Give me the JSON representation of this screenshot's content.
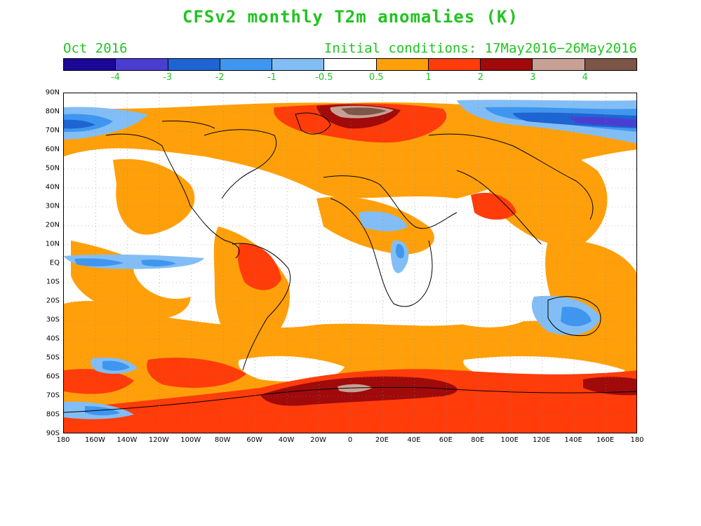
{
  "title": "CFSv2 monthly T2m anomalies (K)",
  "valid_month": "Oct 2016",
  "initial_conditions": "Initial conditions: 17May2016−26May2016",
  "colorbar": {
    "colors": [
      "#1c0896",
      "#4a3ed2",
      "#1e64d2",
      "#3f96f0",
      "#82bef5",
      "#ffffff",
      "#ffa00a",
      "#ff3c0a",
      "#a00a0a",
      "#c8a096",
      "#7d5546"
    ],
    "labels": [
      "-4",
      "-3",
      "-2",
      "-1",
      "-0.5",
      "0.5",
      "1",
      "2",
      "3",
      "4"
    ]
  },
  "axes": {
    "lat_labels": [
      "90N",
      "80N",
      "70N",
      "60N",
      "50N",
      "40N",
      "30N",
      "20N",
      "10N",
      "EQ",
      "10S",
      "20S",
      "30S",
      "40S",
      "50S",
      "60S",
      "70S",
      "80S",
      "90S"
    ],
    "lon_labels": [
      "180",
      "160W",
      "140W",
      "120W",
      "100W",
      "80W",
      "60W",
      "40W",
      "20W",
      "0",
      "20E",
      "40E",
      "60E",
      "80E",
      "100E",
      "120E",
      "140E",
      "160E",
      "180"
    ]
  }
}
